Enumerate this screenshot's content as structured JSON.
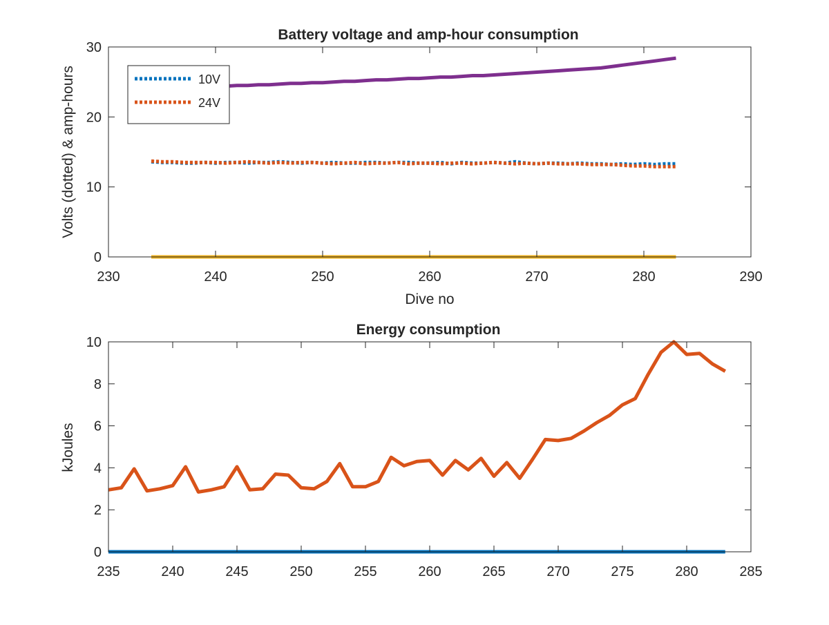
{
  "chart_data": [
    {
      "type": "line",
      "title": "Battery voltage and amp-hour consumption",
      "xlabel": "Dive no",
      "ylabel": "Volts (dotted) & amp-hours",
      "xlim": [
        230,
        290
      ],
      "ylim": [
        0,
        30
      ],
      "xticks": [
        230,
        240,
        250,
        260,
        270,
        280,
        290
      ],
      "yticks": [
        0,
        10,
        20,
        30
      ],
      "grid": false,
      "legend_position": "top-left",
      "x_start": 234,
      "x_end": 283,
      "series": [
        {
          "name": "10V",
          "style": "dotted",
          "color": "#0072BD",
          "in_legend": true,
          "values": [
            13.6,
            13.5,
            13.5,
            13.4,
            13.4,
            13.5,
            13.4,
            13.5,
            13.5,
            13.4,
            13.5,
            13.5,
            13.6,
            13.5,
            13.4,
            13.5,
            13.4,
            13.5,
            13.4,
            13.4,
            13.5,
            13.5,
            13.4,
            13.5,
            13.5,
            13.4,
            13.4,
            13.5,
            13.3,
            13.5,
            13.4,
            13.4,
            13.5,
            13.4,
            13.6,
            13.4,
            13.3,
            13.4,
            13.4,
            13.3,
            13.4,
            13.3,
            13.3,
            13.2,
            13.3,
            13.2,
            13.3,
            13.2,
            13.3,
            13.3
          ]
        },
        {
          "name": "24V",
          "style": "dotted",
          "color": "#D95319",
          "in_legend": true,
          "values": [
            13.7,
            13.6,
            13.6,
            13.5,
            13.5,
            13.5,
            13.5,
            13.4,
            13.5,
            13.6,
            13.5,
            13.4,
            13.5,
            13.4,
            13.5,
            13.5,
            13.4,
            13.3,
            13.4,
            13.5,
            13.3,
            13.4,
            13.4,
            13.5,
            13.3,
            13.4,
            13.4,
            13.3,
            13.4,
            13.4,
            13.3,
            13.4,
            13.5,
            13.4,
            13.3,
            13.4,
            13.3,
            13.4,
            13.3,
            13.3,
            13.3,
            13.2,
            13.2,
            13.2,
            13.1,
            13.0,
            13.0,
            12.9,
            12.9,
            12.9
          ]
        },
        {
          "name": "",
          "style": "solid",
          "color": "#7E2F8E",
          "in_legend": false,
          "values": [
            23.9,
            24.0,
            24.1,
            24.1,
            24.2,
            24.3,
            24.3,
            24.4,
            24.5,
            24.5,
            24.6,
            24.6,
            24.7,
            24.8,
            24.8,
            24.9,
            24.9,
            25.0,
            25.1,
            25.1,
            25.2,
            25.3,
            25.3,
            25.4,
            25.5,
            25.5,
            25.6,
            25.7,
            25.7,
            25.8,
            25.9,
            25.9,
            26.0,
            26.1,
            26.2,
            26.3,
            26.4,
            26.5,
            26.6,
            26.7,
            26.8,
            26.9,
            27.0,
            27.2,
            27.4,
            27.6,
            27.8,
            28.0,
            28.2,
            28.4
          ]
        },
        {
          "name": "",
          "style": "solid",
          "color": "#EDB120",
          "in_legend": false,
          "values": [
            0,
            0,
            0,
            0,
            0,
            0,
            0,
            0,
            0,
            0,
            0,
            0,
            0,
            0,
            0,
            0,
            0,
            0,
            0,
            0,
            0,
            0,
            0,
            0,
            0,
            0,
            0,
            0,
            0,
            0,
            0,
            0,
            0,
            0,
            0,
            0,
            0,
            0,
            0,
            0,
            0,
            0,
            0,
            0,
            0,
            0,
            0,
            0,
            0,
            0
          ]
        }
      ]
    },
    {
      "type": "line",
      "title": "Energy consumption",
      "xlabel": "",
      "ylabel": "kJoules",
      "xlim": [
        235,
        285
      ],
      "ylim": [
        0,
        10
      ],
      "xticks": [
        235,
        240,
        245,
        250,
        255,
        260,
        265,
        270,
        275,
        280,
        285
      ],
      "yticks": [
        0,
        2,
        4,
        6,
        8,
        10
      ],
      "grid": false,
      "x_start": 235,
      "x_end": 283,
      "series": [
        {
          "name": "",
          "color": "#0072BD",
          "values": [
            0,
            0,
            0,
            0,
            0,
            0,
            0,
            0,
            0,
            0,
            0,
            0,
            0,
            0,
            0,
            0,
            0,
            0,
            0,
            0,
            0,
            0,
            0,
            0,
            0,
            0,
            0,
            0,
            0,
            0,
            0,
            0,
            0,
            0,
            0,
            0,
            0,
            0,
            0,
            0,
            0,
            0,
            0,
            0,
            0,
            0,
            0,
            0,
            0
          ]
        },
        {
          "name": "",
          "color": "#D95319",
          "values": [
            2.95,
            3.05,
            3.95,
            2.9,
            3.0,
            3.15,
            4.05,
            2.85,
            2.95,
            3.1,
            4.05,
            2.95,
            3.0,
            3.7,
            3.65,
            3.05,
            3.0,
            3.35,
            4.2,
            3.1,
            3.1,
            3.35,
            4.5,
            4.1,
            4.3,
            4.35,
            3.65,
            4.35,
            3.9,
            4.45,
            3.6,
            4.25,
            3.5,
            4.4,
            5.35,
            5.3,
            5.4,
            5.75,
            6.15,
            6.5,
            7.0,
            7.3,
            8.45,
            9.5,
            10.0,
            9.4,
            9.45,
            8.95,
            8.6
          ]
        }
      ]
    }
  ]
}
